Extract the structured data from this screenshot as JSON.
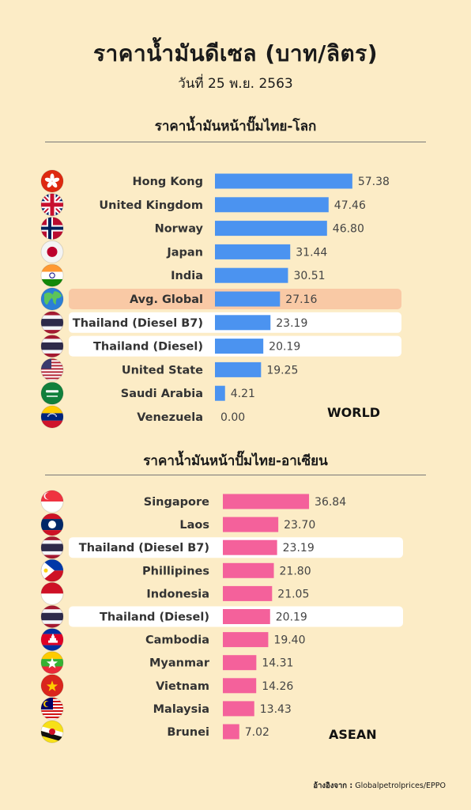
{
  "header": {
    "title": "ราคาน้ำมันดีเซล (บาท/ลิตร)",
    "subtitle": "วันที่ 25 พ.ย. 2563"
  },
  "colors": {
    "background": "#fcecc6",
    "world_bar": "#4b93f0",
    "asean_bar": "#f4619b",
    "avg_highlight": "#f9c9a5",
    "thailand_highlight": "#ffffff"
  },
  "chart_data": [
    {
      "type": "bar",
      "orientation": "horizontal",
      "title": "ราคาน้ำมันหน้าปั๊มไทย-โลก",
      "label": "WORLD",
      "categories": [
        "Hong Kong",
        "United Kingdom",
        "Norway",
        "Japan",
        "India",
        "Avg. Global",
        "Thailand (Diesel B7)",
        "Thailand (Diesel)",
        "United State",
        "Saudi Arabia",
        "Venezuela"
      ],
      "values": [
        57.38,
        47.46,
        46.8,
        31.44,
        30.51,
        27.16,
        23.19,
        20.19,
        19.25,
        4.21,
        0.0
      ],
      "value_labels": [
        "57.38",
        "47.46",
        "46.80",
        "31.44",
        "30.51",
        "27.16",
        "23.19",
        "20.19",
        "19.25",
        "4.21",
        "0.00"
      ],
      "flags": [
        "hong-kong-flag",
        "uk-flag",
        "norway-flag",
        "japan-flag",
        "india-flag",
        "globe-icon",
        "thailand-flag",
        "thailand-flag",
        "usa-flag",
        "saudi-arabia-flag",
        "venezuela-flag"
      ],
      "highlights": [
        "",
        "",
        "",
        "",
        "",
        "avg",
        "thailand",
        "thailand",
        "",
        "",
        ""
      ],
      "bar_color": "#4b93f0"
    },
    {
      "type": "bar",
      "orientation": "horizontal",
      "title": "ราคาน้ำมันหน้าปั๊มไทย-อาเซียน",
      "label": "ASEAN",
      "categories": [
        "Singapore",
        "Laos",
        "Thailand (Diesel B7)",
        "Phillipines",
        "Indonesia",
        "Thailand (Diesel)",
        "Cambodia",
        "Myanmar",
        "Vietnam",
        "Malaysia",
        "Brunei"
      ],
      "values": [
        36.84,
        23.7,
        23.19,
        21.8,
        21.05,
        20.19,
        19.4,
        14.31,
        14.26,
        13.43,
        7.02
      ],
      "value_labels": [
        "36.84",
        "23.70",
        "23.19",
        "21.80",
        "21.05",
        "20.19",
        "19.40",
        "14.31",
        "14.26",
        "13.43",
        "7.02"
      ],
      "flags": [
        "singapore-flag",
        "laos-flag",
        "thailand-flag",
        "philippines-flag",
        "indonesia-flag",
        "thailand-flag",
        "cambodia-flag",
        "myanmar-flag",
        "vietnam-flag",
        "malaysia-flag",
        "brunei-flag"
      ],
      "highlights": [
        "",
        "",
        "thailand",
        "",
        "",
        "thailand",
        "",
        "",
        "",
        "",
        ""
      ],
      "bar_color": "#f4619b"
    }
  ],
  "footer": {
    "source_label": "อ้างอิงจาก :",
    "source_value": "Globalpetrolprices/EPPO"
  }
}
